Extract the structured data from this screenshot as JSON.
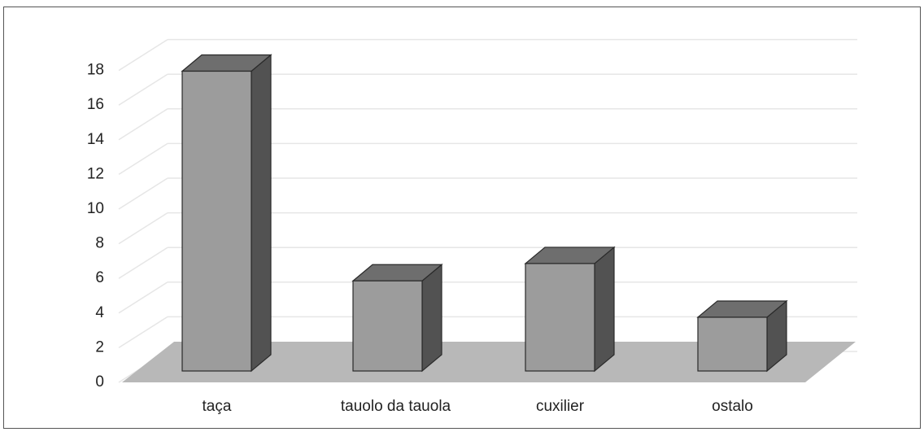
{
  "chart_data": {
    "type": "bar",
    "categories": [
      "taça",
      "tauolo da tauola",
      "cuxilier",
      "ostalo"
    ],
    "values": [
      17.3,
      5.2,
      6.2,
      3.1
    ],
    "ylim": [
      0,
      18
    ],
    "yticks": [
      "0",
      "2",
      "4",
      "6",
      "8",
      "10",
      "12",
      "14",
      "16",
      "18"
    ],
    "grid": true,
    "three_d": true,
    "colors": {
      "bar_front": "#9c9c9c",
      "bar_top": "#6e6e6e",
      "bar_side": "#525252",
      "floor": "#b8b8b8",
      "grid": "#e6e6e6"
    }
  }
}
